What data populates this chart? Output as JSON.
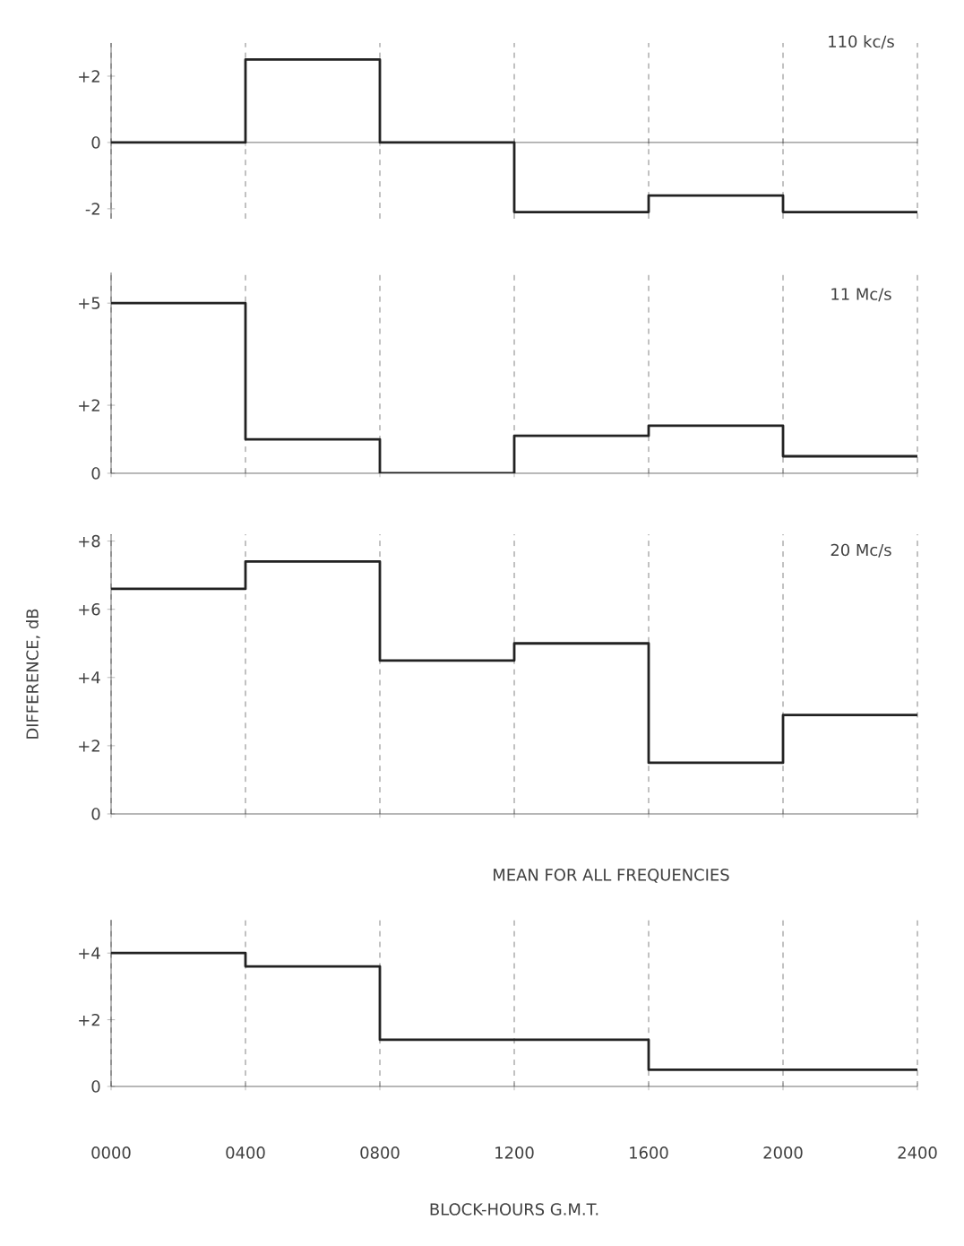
{
  "chart_data": [
    {
      "type": "step",
      "title": "110 kc/s",
      "x": [
        0,
        400,
        800,
        1200,
        1600,
        2000,
        2400
      ],
      "values": [
        0,
        2.5,
        0,
        -2.1,
        -1.6,
        -2.1,
        -2.1
      ],
      "color": "#222222",
      "xlim": [
        0,
        2400
      ],
      "xticks": [
        0,
        400,
        800,
        1200,
        1600,
        2000,
        2400
      ],
      "ylim": [
        -2.3,
        3.0
      ],
      "yticks": [
        {
          "value": -2,
          "label": "-2"
        },
        0,
        {
          "value": 2,
          "label": "+2"
        }
      ],
      "grid": "x",
      "tick_labels": "y"
    },
    {
      "type": "step",
      "title": "11 Mc/s",
      "x": [
        0,
        400,
        800,
        1200,
        1600,
        2000,
        2400
      ],
      "values": [
        5,
        1.0,
        0,
        1.1,
        1.4,
        0.5,
        0.5
      ],
      "color": "#222222",
      "xlim": [
        0,
        2400
      ],
      "xticks": [
        0,
        400,
        800,
        1200,
        1600,
        2000,
        2400
      ],
      "ylim": [
        0,
        5.9
      ],
      "yticks": [
        0,
        {
          "value": 2,
          "label": "+2"
        },
        {
          "value": 5,
          "label": "+5"
        }
      ],
      "grid": "x",
      "tick_labels": "y"
    },
    {
      "type": "step",
      "title": "20 Mc/s",
      "ylabel": "DIFFERENCE, dB",
      "x": [
        0,
        400,
        800,
        1200,
        1600,
        2000,
        2400
      ],
      "values": [
        6.6,
        7.4,
        4.5,
        5.0,
        1.5,
        2.9,
        2.9
      ],
      "color": "#222222",
      "xlim": [
        0,
        2400
      ],
      "xticks": [
        0,
        400,
        800,
        1200,
        1600,
        2000,
        2400
      ],
      "ylim": [
        0,
        8.2
      ],
      "yticks": [
        0,
        {
          "value": 2,
          "label": "+2"
        },
        {
          "value": 4,
          "label": "+4"
        },
        {
          "value": 6,
          "label": "+6"
        },
        {
          "value": 8,
          "label": "+8"
        }
      ],
      "grid": "x",
      "tick_labels": "y"
    },
    {
      "type": "step",
      "title": "MEAN FOR ALL FREQUENCIES",
      "xlabel": "BLOCK-HOURS  G.M.T.",
      "x": [
        0,
        400,
        800,
        1600,
        2400
      ],
      "values": [
        4.0,
        3.6,
        1.4,
        0.5,
        0.5
      ],
      "color": "#222222",
      "xlim": [
        0,
        2400
      ],
      "xticks": [
        {
          "value": 0,
          "label": "0000"
        },
        {
          "value": 400,
          "label": "0400"
        },
        {
          "value": 800,
          "label": "0800"
        },
        1200,
        1600,
        2000,
        2400
      ],
      "ylim": [
        0,
        5.0
      ],
      "yticks": [
        0,
        {
          "value": 2,
          "label": "+2"
        },
        {
          "value": 4,
          "label": "+4"
        }
      ],
      "grid": "x"
    }
  ]
}
